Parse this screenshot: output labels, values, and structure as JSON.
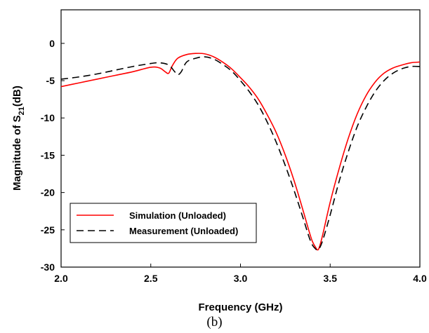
{
  "chart_data": {
    "type": "line",
    "xlabel": "Frequency (GHz)",
    "ylabel_main": "Magnitude of S",
    "ylabel_sub": "21",
    "ylabel_suffix": "(dB)",
    "xlim": [
      2.0,
      4.0
    ],
    "ylim": [
      -30,
      4.5
    ],
    "xticks": [
      2.0,
      2.5,
      3.0,
      3.5,
      4.0
    ],
    "xtick_labels": [
      "2.0",
      "2.5",
      "3.0",
      "3.5",
      "4.0"
    ],
    "yticks": [
      0,
      -5,
      -10,
      -15,
      -20,
      -25,
      -30
    ],
    "ytick_labels": [
      "0",
      "-5",
      "-10",
      "-15",
      "-20",
      "-25",
      "-30"
    ],
    "grid": false,
    "legend_position": "bottom-left",
    "series": [
      {
        "name": "Simulation (Unloaded)",
        "color": "#ff0000",
        "dash": "solid",
        "x": [
          2.0,
          2.1,
          2.2,
          2.3,
          2.4,
          2.5,
          2.55,
          2.58,
          2.6,
          2.62,
          2.65,
          2.7,
          2.75,
          2.8,
          2.85,
          2.9,
          2.95,
          3.0,
          3.05,
          3.1,
          3.15,
          3.2,
          3.25,
          3.3,
          3.35,
          3.38,
          3.4,
          3.42,
          3.43,
          3.44,
          3.46,
          3.5,
          3.55,
          3.6,
          3.65,
          3.7,
          3.75,
          3.8,
          3.85,
          3.9,
          3.95,
          4.0
        ],
        "y": [
          -5.8,
          -5.3,
          -4.8,
          -4.3,
          -3.8,
          -3.2,
          -3.3,
          -3.8,
          -4.0,
          -3.0,
          -2.0,
          -1.5,
          -1.35,
          -1.4,
          -1.8,
          -2.5,
          -3.4,
          -4.6,
          -5.9,
          -7.5,
          -9.6,
          -12.0,
          -15.0,
          -18.5,
          -22.5,
          -25.0,
          -26.5,
          -27.4,
          -27.7,
          -27.3,
          -25.5,
          -21.3,
          -16.8,
          -12.8,
          -9.5,
          -7.0,
          -5.2,
          -4.0,
          -3.3,
          -2.9,
          -2.6,
          -2.5
        ]
      },
      {
        "name": "Measurement (Unloaded)",
        "color": "#000000",
        "dash": "dashed",
        "x": [
          2.0,
          2.1,
          2.2,
          2.3,
          2.4,
          2.5,
          2.55,
          2.6,
          2.63,
          2.65,
          2.67,
          2.7,
          2.75,
          2.8,
          2.85,
          2.9,
          2.95,
          3.0,
          3.05,
          3.1,
          3.15,
          3.2,
          3.25,
          3.3,
          3.35,
          3.38,
          3.4,
          3.42,
          3.43,
          3.44,
          3.46,
          3.5,
          3.55,
          3.6,
          3.65,
          3.7,
          3.75,
          3.8,
          3.85,
          3.9,
          3.95,
          4.0
        ],
        "y": [
          -4.8,
          -4.5,
          -4.1,
          -3.6,
          -3.1,
          -2.7,
          -2.6,
          -2.9,
          -3.7,
          -4.2,
          -3.8,
          -2.5,
          -2.0,
          -1.8,
          -2.1,
          -2.8,
          -3.7,
          -5.0,
          -6.5,
          -8.3,
          -10.6,
          -13.3,
          -16.4,
          -19.8,
          -23.5,
          -25.8,
          -27.0,
          -27.6,
          -27.7,
          -27.5,
          -26.3,
          -23.0,
          -18.5,
          -14.6,
          -11.2,
          -8.6,
          -6.5,
          -5.0,
          -4.0,
          -3.4,
          -3.1,
          -3.1
        ]
      }
    ]
  },
  "caption": "(b)"
}
